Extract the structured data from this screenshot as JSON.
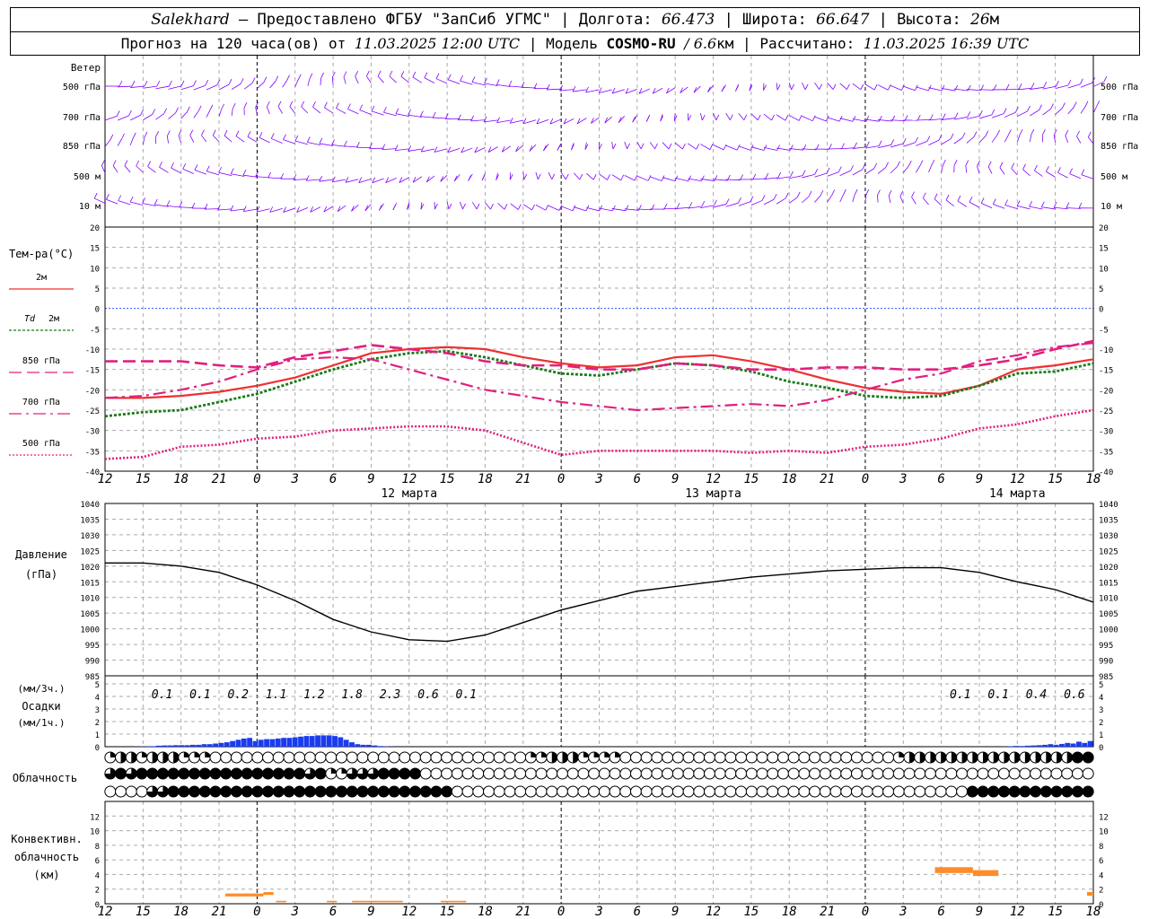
{
  "header": {
    "city": "Salekhard",
    "provider": "– Предоставлено ФГБУ \"ЗапСиб УГМС\" | Долгота:",
    "lon": "66.473",
    "lat_label": "| Широта:",
    "lat": "66.647",
    "alt_label": "| Высота:",
    "alt": "26",
    "alt_unit": "м",
    "forecast_prefix": "Прогноз на 120 часа(ов) от",
    "forecast_time": "11.03.2025 12:00 UTC",
    "model_label": "| Модель",
    "model": "COSMO-RU",
    "model_res": "/ 6.6",
    "model_res_unit": "км",
    "calc_label": "| Рассчитано:",
    "calc_time": "11.03.2025 16:39 UTC"
  },
  "time_axis": {
    "hour_labels": [
      "12",
      "15",
      "18",
      "21",
      "0",
      "3",
      "6",
      "9",
      "12",
      "15",
      "18",
      "21",
      "0",
      "3",
      "6",
      "9",
      "12",
      "15",
      "18",
      "21",
      "0",
      "3",
      "6",
      "9",
      "12",
      "15",
      "18"
    ],
    "day_labels": [
      {
        "hour": 24,
        "text": "12 марта"
      },
      {
        "hour": 48,
        "text": "13 марта"
      },
      {
        "hour": 72,
        "text": "14 марта"
      }
    ],
    "hours": 78
  },
  "wind_panel": {
    "title": "Ветер",
    "levels": [
      "500 гПа",
      "700 гПа",
      "850 гПа",
      "500 м",
      "10  м"
    ],
    "barb_color": "#8000ff"
  },
  "chart_data": [
    {
      "type": "line",
      "panel": "temperature",
      "title": "Тем-ра(°C)",
      "ylim": [
        -40,
        20
      ],
      "y_ticks": [
        20,
        15,
        10,
        5,
        0,
        -5,
        -10,
        -15,
        -20,
        -25,
        -30,
        -35,
        -40
      ],
      "x_hours": [
        0,
        3,
        6,
        9,
        12,
        15,
        18,
        21,
        24,
        27,
        30,
        33,
        36,
        39,
        42,
        45,
        48,
        51,
        54,
        57,
        60,
        63,
        66,
        69,
        72,
        75,
        78
      ],
      "series": [
        {
          "name": "2м",
          "color": "#ee3030",
          "style": "solid",
          "values": [
            -22,
            -22,
            -21.5,
            -20.5,
            -19,
            -17,
            -14,
            -11,
            -10,
            -9.5,
            -10,
            -12,
            -13.5,
            -14.5,
            -14,
            -12,
            -11.5,
            -13,
            -15,
            -17.5,
            -19.5,
            -20.5,
            -21,
            -19,
            -15,
            -14,
            -12.5
          ]
        },
        {
          "name": "Td 2м",
          "color": "#1a7a1a",
          "style": "dotted",
          "values": [
            -26.5,
            -25.5,
            -25,
            -23,
            -21,
            -18,
            -15,
            -12.5,
            -11,
            -10.5,
            -12,
            -14,
            -16,
            -16.5,
            -15,
            -13.5,
            -14,
            -15.5,
            -18,
            -19.5,
            -21.5,
            -22,
            -21.5,
            -19,
            -16,
            -15.5,
            -13.5
          ]
        },
        {
          "name": "850 гПа",
          "color": "#e0207f",
          "style": "dash",
          "values": [
            -13,
            -13,
            -13,
            -14,
            -14.5,
            -12,
            -10.5,
            -9,
            -10,
            -11,
            -13,
            -14,
            -14,
            -15,
            -15,
            -13.5,
            -14,
            -15,
            -15,
            -14.5,
            -14.5,
            -15,
            -15,
            -14,
            -12.5,
            -10,
            -8
          ]
        },
        {
          "name": "700 гПа",
          "color": "#e0207f",
          "style": "dashdot",
          "values": [
            -22,
            -21.5,
            -20,
            -18,
            -15,
            -12.5,
            -12,
            -12.5,
            -15,
            -17.5,
            -20,
            -21.5,
            -23,
            -24,
            -25,
            -24.5,
            -24,
            -23.5,
            -24,
            -22.5,
            -20,
            -17.5,
            -16,
            -13,
            -11.5,
            -9.5,
            -8.5
          ]
        },
        {
          "name": "500 гПа",
          "color": "#e0207f",
          "style": "finedot",
          "values": [
            -37,
            -36.5,
            -34,
            -33.5,
            -32,
            -31.5,
            -30,
            -29.5,
            -29,
            -29,
            -30,
            -33,
            -36,
            -35,
            -35,
            -35,
            -35,
            -35.5,
            -35,
            -35.5,
            -34,
            -33.5,
            -32,
            -29.5,
            -28.5,
            -26.5,
            -25
          ]
        }
      ]
    },
    {
      "type": "line",
      "panel": "pressure",
      "title": "Давление",
      "ylabel": "(гПа)",
      "ylim": [
        985,
        1040
      ],
      "y_ticks": [
        1040,
        1035,
        1030,
        1025,
        1020,
        1015,
        1010,
        1005,
        1000,
        995,
        990,
        985
      ],
      "x_hours": [
        0,
        3,
        6,
        9,
        12,
        15,
        18,
        21,
        24,
        27,
        30,
        33,
        36,
        39,
        42,
        45,
        48,
        51,
        54,
        57,
        60,
        63,
        66,
        69,
        72,
        75,
        78
      ],
      "series": [
        {
          "name": "Давление",
          "color": "#000000",
          "values": [
            1021,
            1021,
            1020,
            1018,
            1014,
            1009,
            1003,
            999,
            996.5,
            996,
            998,
            1002,
            1006,
            1009,
            1012,
            1013.5,
            1015,
            1016.5,
            1017.5,
            1018.5,
            1019,
            1019.5,
            1019.5,
            1018,
            1015,
            1012.5,
            1008.5
          ]
        }
      ]
    },
    {
      "type": "bar",
      "panel": "precipitation",
      "ylabel_top": "(мм/3ч.)",
      "title": "Осадки",
      "ylabel_bottom": "(мм/1ч.)",
      "ylim": [
        0,
        5
      ],
      "y_ticks": [
        5,
        4,
        3,
        2,
        1,
        0
      ],
      "color": "#1a3cf0",
      "hourly_values": [
        0,
        0,
        0,
        0,
        0,
        0.01,
        0.02,
        0.03,
        0.04,
        0.08,
        0.1,
        0.1,
        0.12,
        0.12,
        0.12,
        0.15,
        0.15,
        0.2,
        0.2,
        0.25,
        0.3,
        0.35,
        0.45,
        0.55,
        0.65,
        0.7,
        0.45,
        0.55,
        0.6,
        0.6,
        0.65,
        0.7,
        0.7,
        0.75,
        0.8,
        0.85,
        0.85,
        0.9,
        0.9,
        0.9,
        0.85,
        0.75,
        0.55,
        0.35,
        0.2,
        0.15,
        0.15,
        0.1,
        0.05,
        0.03,
        0.01,
        0,
        0,
        0,
        0,
        0,
        0,
        0,
        0,
        0,
        0,
        0,
        0,
        0,
        0,
        0,
        0,
        0,
        0,
        0,
        0,
        0,
        0,
        0,
        0,
        0,
        0,
        0,
        0,
        0,
        0,
        0,
        0,
        0,
        0,
        0,
        0,
        0,
        0,
        0,
        0,
        0,
        0,
        0,
        0,
        0,
        0,
        0,
        0,
        0,
        0,
        0,
        0,
        0,
        0,
        0,
        0,
        0,
        0,
        0,
        0,
        0,
        0,
        0,
        0,
        0,
        0,
        0,
        0,
        0,
        0,
        0,
        0,
        0,
        0,
        0,
        0,
        0,
        0,
        0,
        0,
        0,
        0,
        0,
        0,
        0,
        0,
        0,
        0,
        0,
        0,
        0,
        0,
        0,
        0,
        0,
        0,
        0,
        0,
        0,
        0,
        0,
        0,
        0,
        0,
        0,
        0,
        0,
        0.01,
        0.03,
        0.06,
        0.05,
        0.08,
        0.1,
        0.12,
        0.15,
        0.2,
        0.15,
        0.22,
        0.3,
        0.25,
        0.4,
        0.3,
        0.45
      ],
      "labels": [
        {
          "hour": 4.5,
          "text": "0.1"
        },
        {
          "hour": 7.5,
          "text": "0.1"
        },
        {
          "hour": 10.5,
          "text": "0.2"
        },
        {
          "hour": 13.5,
          "text": "1.1"
        },
        {
          "hour": 16.5,
          "text": "1.2"
        },
        {
          "hour": 19.5,
          "text": "1.8"
        },
        {
          "hour": 22.5,
          "text": "2.3"
        },
        {
          "hour": 25.5,
          "text": "0.6"
        },
        {
          "hour": 28.5,
          "text": "0.1"
        },
        {
          "hour": 67.5,
          "text": "0.1"
        },
        {
          "hour": 70.5,
          "text": "0.1"
        },
        {
          "hour": 73.5,
          "text": "0.4"
        },
        {
          "hour": 76.5,
          "text": "0.6"
        }
      ]
    },
    {
      "type": "bar",
      "panel": "convective_clouds",
      "title": "Конвективн.",
      "title2": "облачность",
      "ylabel": "(км)",
      "ylim": [
        0,
        14
      ],
      "y_ticks": [
        12,
        10,
        8,
        6,
        4,
        2,
        0
      ],
      "color": "#ff8c2a",
      "segments": [
        {
          "h0": 9.5,
          "h1": 12.5,
          "base": 1.0,
          "top": 1.4
        },
        {
          "h0": 12.5,
          "h1": 13.3,
          "base": 1.2,
          "top": 1.6
        },
        {
          "h0": 13.5,
          "h1": 14.3,
          "base": 0.2,
          "top": 0.4
        },
        {
          "h0": 17.5,
          "h1": 18.3,
          "base": 0.2,
          "top": 0.4
        },
        {
          "h0": 19.5,
          "h1": 23.5,
          "base": 0.2,
          "top": 0.4
        },
        {
          "h0": 26.5,
          "h1": 28.5,
          "base": 0.2,
          "top": 0.4
        },
        {
          "h0": 65.5,
          "h1": 68.5,
          "base": 4.2,
          "top": 5.0
        },
        {
          "h0": 68.5,
          "h1": 70.5,
          "base": 3.8,
          "top": 4.6
        },
        {
          "h0": 77.5,
          "h1": 78.0,
          "base": 1.1,
          "top": 1.6
        }
      ]
    }
  ],
  "cloud_panel": {
    "title": "Облачность",
    "rows": [
      "1221222111000000000000000000000000000000112221111000000000000000000000000001222222222222222244",
      "3434444444444444444341133344440000000000000000000000000000000000000000000000000000000000000000",
      "0000334444444444444444444444444440000000000000000000000000000000000000000000000000444444444444"
    ]
  },
  "temp_legend": [
    {
      "label": "2м"
    },
    {
      "label": "Td",
      "label2": "2м"
    },
    {
      "label": "850 гПа"
    },
    {
      "label": "700 гПа"
    },
    {
      "label": "500 гПа"
    }
  ]
}
